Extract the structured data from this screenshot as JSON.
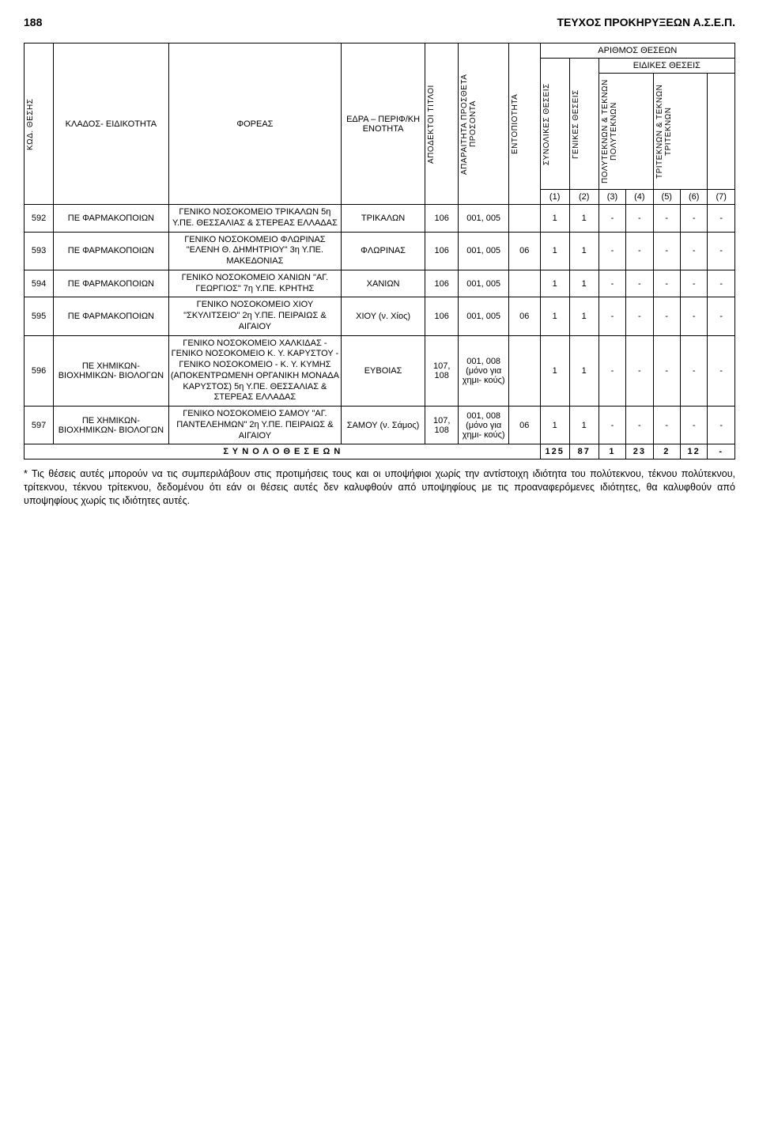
{
  "header": {
    "page_number": "188",
    "title": "ΤΕΥΧΟΣ ΠΡΟΚΗΡΥΞΕΩΝ Α.Σ.Ε.Π."
  },
  "table": {
    "headers": {
      "kod": "ΚΩΔ. ΘΕΣΗΣ",
      "klados": "ΚΛΑΔΟΣ- ΕΙΔΙΚΟΤΗΤΑ",
      "foreas": "ΦΟΡΕΑΣ",
      "edra": "ΕΔΡΑ – ΠΕΡΙΦ/ΚΗ ΕΝΟΤΗΤΑ",
      "titloi": "ΑΠΟΔΕΚΤΟΙ ΤΙΤΛΟΙ",
      "prosonta": "ΑΠΑΡΑΙΤΗΤΑ ΠΡΟΣΘΕΤΑ ΠΡΟΣΟΝΤΑ",
      "entopiotita": "ΕΝΤΟΠΙΟΤΗΤΑ",
      "arithmos": "ΑΡΙΘΜΟΣ ΘΕΣΕΩΝ",
      "synolikes": "ΣΥΝΟΛΙΚΕΣ ΘΕΣΕΙΣ",
      "genikes": "ΓΕΝΙΚΕΣ ΘΕΣΕΙΣ",
      "eidikes": "ΕΙΔΙΚΕΣ ΘΕΣΕΙΣ",
      "polyteknon": "ΠΟΛΥΤΕΚΝΩΝ & ΤΕΚΝΩΝ ΠΟΛΥΤΕΚΝΩΝ",
      "triteknon": "ΤΡΙΤΕΚΝΩΝ & ΤΕΚΝΩΝ ΤΡΙΤΕΚΝΩΝ",
      "idx": [
        "(1)",
        "(2)",
        "(3)",
        "(4)",
        "(5)",
        "(6)",
        "(7)"
      ]
    },
    "rows": [
      {
        "kod": "592",
        "klados": "ΠΕ ΦΑΡΜΑΚΟΠΟΙΩΝ",
        "foreas": "ΓΕΝΙΚΟ ΝΟΣΟΚΟΜΕΙΟ ΤΡΙΚΑΛΩΝ 5η Υ.ΠΕ. ΘΕΣΣΑΛΙΑΣ & ΣΤΕΡΕΑΣ ΕΛΛΑΔΑΣ",
        "edra": "ΤΡΙΚΑΛΩΝ",
        "titloi": "106",
        "prosonta": "001, 005",
        "ento": "",
        "c1": "1",
        "c2": "1",
        "c3": "-",
        "c4": "-",
        "c5": "-",
        "c6": "-",
        "c7": "-"
      },
      {
        "kod": "593",
        "klados": "ΠΕ ΦΑΡΜΑΚΟΠΟΙΩΝ",
        "foreas": "ΓΕΝΙΚΟ ΝΟΣΟΚΟΜΕΙΟ ΦΛΩΡΙΝΑΣ \"ΕΛΕΝΗ Θ. ΔΗΜΗΤΡΙΟΥ\" 3η Υ.ΠΕ. ΜΑΚΕΔΟΝΙΑΣ",
        "edra": "ΦΛΩΡΙΝΑΣ",
        "titloi": "106",
        "prosonta": "001, 005",
        "ento": "06",
        "c1": "1",
        "c2": "1",
        "c3": "-",
        "c4": "-",
        "c5": "-",
        "c6": "-",
        "c7": "-"
      },
      {
        "kod": "594",
        "klados": "ΠΕ ΦΑΡΜΑΚΟΠΟΙΩΝ",
        "foreas": "ΓΕΝΙΚΟ ΝΟΣΟΚΟΜΕΙΟ ΧΑΝΙΩΝ \"ΑΓ. ΓΕΩΡΓΙΟΣ\" 7η Υ.ΠΕ. ΚΡΗΤΗΣ",
        "edra": "ΧΑΝΙΩΝ",
        "titloi": "106",
        "prosonta": "001, 005",
        "ento": "",
        "c1": "1",
        "c2": "1",
        "c3": "-",
        "c4": "-",
        "c5": "-",
        "c6": "-",
        "c7": "-"
      },
      {
        "kod": "595",
        "klados": "ΠΕ ΦΑΡΜΑΚΟΠΟΙΩΝ",
        "foreas": "ΓΕΝΙΚΟ ΝΟΣΟΚΟΜΕΙΟ ΧΙΟΥ \"ΣΚΥΛΙΤΣΕΙΟ\" 2η Υ.ΠΕ. ΠΕΙΡΑΙΩΣ & ΑΙΓΑΙΟΥ",
        "edra": "ΧΙΟΥ (ν. Χίος)",
        "titloi": "106",
        "prosonta": "001, 005",
        "ento": "06",
        "c1": "1",
        "c2": "1",
        "c3": "-",
        "c4": "-",
        "c5": "-",
        "c6": "-",
        "c7": "-"
      },
      {
        "kod": "596",
        "klados": "ΠΕ ΧΗΜΙΚΩΝ- ΒΙΟΧΗΜΙΚΩΝ- ΒΙΟΛΟΓΩΝ",
        "foreas": "ΓΕΝΙΚΟ ΝΟΣΟΚΟΜΕΙΟ ΧΑΛΚΙΔΑΣ - ΓΕΝΙΚΟ ΝΟΣΟΚΟΜΕΙΟ Κ. Υ. ΚΑΡΥΣΤΟΥ - ΓΕΝΙΚΟ ΝΟΣΟΚΟΜΕΙΟ - Κ. Υ. ΚΥΜΗΣ (ΑΠΟΚΕΝΤΡΩΜΕΝΗ ΟΡΓΑΝΙΚΗ ΜΟΝΑΔΑ ΚΑΡΥΣΤΟΣ) 5η Υ.ΠΕ. ΘΕΣΣΑΛΙΑΣ & ΣΤΕΡΕΑΣ ΕΛΛΑΔΑΣ",
        "edra": "ΕΥΒΟΙΑΣ",
        "titloi": "107, 108",
        "prosonta": "001, 008 (μόνο για χημι- κούς)",
        "ento": "",
        "c1": "1",
        "c2": "1",
        "c3": "-",
        "c4": "-",
        "c5": "-",
        "c6": "-",
        "c7": "-"
      },
      {
        "kod": "597",
        "klados": "ΠΕ ΧΗΜΙΚΩΝ- ΒΙΟΧΗΜΙΚΩΝ- ΒΙΟΛΟΓΩΝ",
        "foreas": "ΓΕΝΙΚΟ ΝΟΣΟΚΟΜΕΙΟ ΣΑΜΟΥ \"ΑΓ. ΠΑΝΤΕΛΕΗΜΩΝ\" 2η Υ.ΠΕ. ΠΕΙΡΑΙΩΣ & ΑΙΓΑΙΟΥ",
        "edra": "ΣΑΜΟΥ (ν. Σάμος)",
        "titloi": "107, 108",
        "prosonta": "001, 008 (μόνο για χημι- κούς)",
        "ento": "06",
        "c1": "1",
        "c2": "1",
        "c3": "-",
        "c4": "-",
        "c5": "-",
        "c6": "-",
        "c7": "-"
      }
    ],
    "total": {
      "label": "Σ Υ Ν Ο Λ Ο   Θ Ε Σ Ε Ω Ν",
      "c1": "125",
      "c2": "87",
      "c3": "1",
      "c4": "23",
      "c5": "2",
      "c6": "12",
      "c7": "-"
    }
  },
  "footnote": "* Τις θέσεις αυτές μπορούν να τις συμπεριλάβουν στις προτιμήσεις τους και οι υποψήφιοι χωρίς την αντίστοιχη ιδιότητα του πολύτεκνου, τέκνου πολύτεκνου, τρίτεκνου, τέκνου τρίτεκνου, δεδομένου ότι εάν οι θέσεις αυτές δεν καλυφθούν από υποψηφίους με τις προαναφερόμενες ιδιότητες, θα καλυφθούν από υποψηφίους χωρίς τις ιδιότητες αυτές."
}
